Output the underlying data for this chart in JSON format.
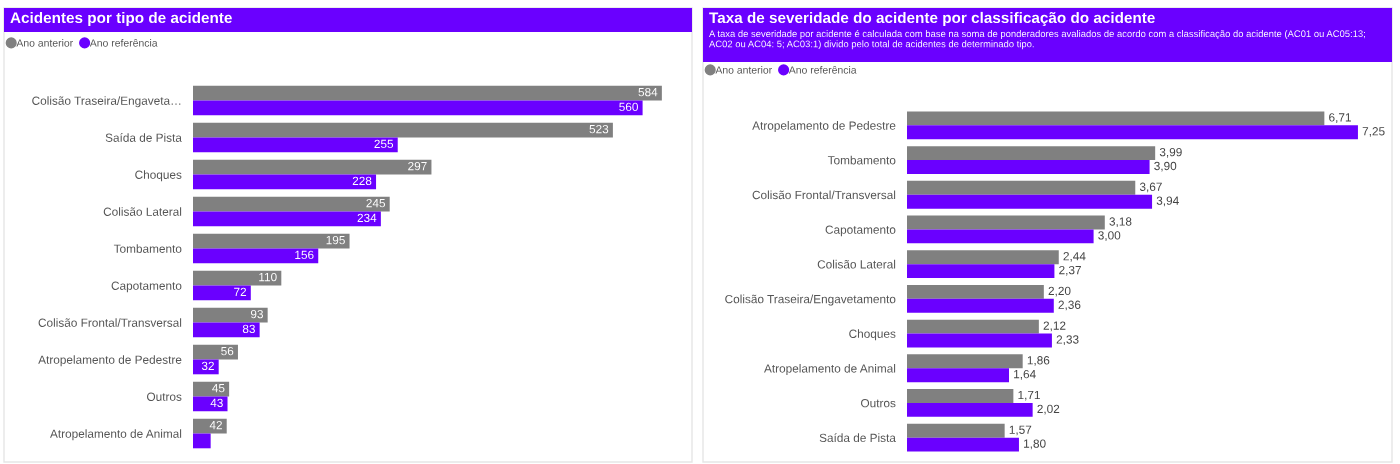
{
  "chart_data": [
    {
      "type": "bar",
      "orientation": "horizontal",
      "title": "Acidentes por tipo de acidente",
      "legend": "top left",
      "categories": [
        "Colisão Traseira/Engaveta…",
        "Saída de Pista",
        "Choques",
        "Colisão Lateral",
        "Tombamento",
        "Capotamento",
        "Colisão Frontal/Transversal",
        "Atropelamento de Pedestre",
        "Outros",
        "Atropelamento de Animal"
      ],
      "series": [
        {
          "name": "Ano anterior",
          "color": "#808080",
          "values": [
            584,
            523,
            297,
            245,
            195,
            110,
            93,
            56,
            45,
            42
          ],
          "value_labels": [
            "584",
            "523",
            "297",
            "245",
            "195",
            "110",
            "93",
            "56",
            "45",
            "42"
          ]
        },
        {
          "name": "Ano referência",
          "color": "#6a00ff",
          "values": [
            560,
            255,
            228,
            234,
            156,
            72,
            83,
            32,
            43,
            22
          ],
          "value_labels": [
            "560",
            "255",
            "228",
            "234",
            "156",
            "72",
            "83",
            "32",
            "43",
            null
          ]
        }
      ]
    },
    {
      "type": "bar",
      "orientation": "horizontal",
      "title": "Taxa de severidade do acidente por classificação do acidente",
      "subtitle": "A taxa de severidade por acidente é calculada com base na soma de ponderadores avaliados de acordo com a classificação do acidente (AC01 ou AC05:13; AC02 ou AC04: 5; AC03:1) divido pelo total de acidentes de determinado tipo.",
      "legend": "top left",
      "categories": [
        "Atropelamento de Pedestre",
        "Tombamento",
        "Colisão Frontal/Transversal",
        "Capotamento",
        "Colisão Lateral",
        "Colisão Traseira/Engavetamento",
        "Choques",
        "Atropelamento de Animal",
        "Outros",
        "Saída de Pista"
      ],
      "series": [
        {
          "name": "Ano anterior",
          "color": "#808080",
          "values": [
            6.71,
            3.99,
            3.67,
            3.18,
            2.44,
            2.2,
            2.12,
            1.86,
            1.71,
            1.57
          ],
          "value_labels": [
            "6,71",
            "3,99",
            "3,67",
            "3,18",
            "2,44",
            "2,20",
            "2,12",
            "1,86",
            "1,71",
            "1,57"
          ]
        },
        {
          "name": "Ano referência",
          "color": "#6a00ff",
          "values": [
            7.25,
            3.9,
            3.94,
            3.0,
            2.37,
            2.36,
            2.33,
            1.64,
            2.02,
            1.8
          ],
          "value_labels": [
            "7,25",
            "3,90",
            "3,94",
            "3,00",
            "2,37",
            "2,36",
            "2,33",
            "1,64",
            "2,02",
            "1,80"
          ]
        }
      ]
    }
  ]
}
